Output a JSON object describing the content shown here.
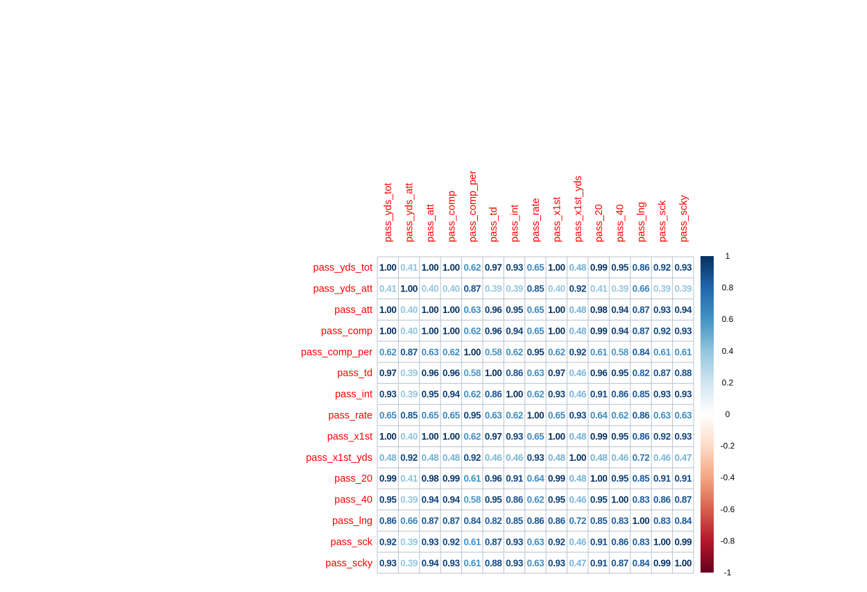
{
  "chart_data": {
    "type": "heatmap",
    "variables": [
      "pass_yds_tot",
      "pass_yds_att",
      "pass_att",
      "pass_comp",
      "pass_comp_per",
      "pass_td",
      "pass_int",
      "pass_rate",
      "pass_x1st",
      "pass_x1st_yds",
      "pass_20",
      "pass_40",
      "pass_lng",
      "pass_sck",
      "pass_scky"
    ],
    "matrix": [
      [
        "1.00",
        "0.41",
        "1.00",
        "1.00",
        "0.62",
        "0.97",
        "0.93",
        "0.65",
        "1.00",
        "0.48",
        "0.99",
        "0.95",
        "0.86",
        "0.92",
        "0.93"
      ],
      [
        "0.41",
        "1.00",
        "0.40",
        "0.40",
        "0.87",
        "0.39",
        "0.39",
        "0.85",
        "0.40",
        "0.92",
        "0.41",
        "0.39",
        "0.66",
        "0.39",
        "0.39"
      ],
      [
        "1.00",
        "0.40",
        "1.00",
        "1.00",
        "0.63",
        "0.96",
        "0.95",
        "0.65",
        "1.00",
        "0.48",
        "0.98",
        "0.94",
        "0.87",
        "0.93",
        "0.94"
      ],
      [
        "1.00",
        "0.40",
        "1.00",
        "1.00",
        "0.62",
        "0.96",
        "0.94",
        "0.65",
        "1.00",
        "0.48",
        "0.99",
        "0.94",
        "0.87",
        "0.92",
        "0.93"
      ],
      [
        "0.62",
        "0.87",
        "0.63",
        "0.62",
        "1.00",
        "0.58",
        "0.62",
        "0.95",
        "0.62",
        "0.92",
        "0.61",
        "0.58",
        "0.84",
        "0.61",
        "0.61"
      ],
      [
        "0.97",
        "0.39",
        "0.96",
        "0.96",
        "0.58",
        "1.00",
        "0.86",
        "0.63",
        "0.97",
        "0.46",
        "0.96",
        "0.95",
        "0.82",
        "0.87",
        "0.88"
      ],
      [
        "0.93",
        "0.39",
        "0.95",
        "0.94",
        "0.62",
        "0.86",
        "1.00",
        "0.62",
        "0.93",
        "0.46",
        "0.91",
        "0.86",
        "0.85",
        "0.93",
        "0.93"
      ],
      [
        "0.65",
        "0.85",
        "0.65",
        "0.65",
        "0.95",
        "0.63",
        "0.62",
        "1.00",
        "0.65",
        "0.93",
        "0.64",
        "0.62",
        "0.86",
        "0.63",
        "0.63"
      ],
      [
        "1.00",
        "0.40",
        "1.00",
        "1.00",
        "0.62",
        "0.97",
        "0.93",
        "0.65",
        "1.00",
        "0.48",
        "0.99",
        "0.95",
        "0.86",
        "0.92",
        "0.93"
      ],
      [
        "0.48",
        "0.92",
        "0.48",
        "0.48",
        "0.92",
        "0.46",
        "0.46",
        "0.93",
        "0.48",
        "1.00",
        "0.48",
        "0.46",
        "0.72",
        "0.46",
        "0.47"
      ],
      [
        "0.99",
        "0.41",
        "0.98",
        "0.99",
        "0.61",
        "0.96",
        "0.91",
        "0.64",
        "0.99",
        "0.48",
        "1.00",
        "0.95",
        "0.85",
        "0.91",
        "0.91"
      ],
      [
        "0.95",
        "0.39",
        "0.94",
        "0.94",
        "0.58",
        "0.95",
        "0.86",
        "0.62",
        "0.95",
        "0.46",
        "0.95",
        "1.00",
        "0.83",
        "0.86",
        "0.87"
      ],
      [
        "0.86",
        "0.66",
        "0.87",
        "0.87",
        "0.84",
        "0.82",
        "0.85",
        "0.86",
        "0.86",
        "0.72",
        "0.85",
        "0.83",
        "1.00",
        "0.83",
        "0.84"
      ],
      [
        "0.92",
        "0.39",
        "0.93",
        "0.92",
        "0.61",
        "0.87",
        "0.93",
        "0.63",
        "0.92",
        "0.46",
        "0.91",
        "0.86",
        "0.83",
        "1.00",
        "0.99"
      ],
      [
        "0.93",
        "0.39",
        "0.94",
        "0.93",
        "0.61",
        "0.88",
        "0.93",
        "0.63",
        "0.93",
        "0.47",
        "0.91",
        "0.87",
        "0.84",
        "0.99",
        "1.00"
      ]
    ],
    "legend": {
      "range": [
        -1,
        1
      ],
      "ticks": [
        "1",
        "0.8",
        "0.6",
        "0.4",
        "0.2",
        "0",
        "-0.2",
        "-0.4",
        "-0.6",
        "-0.8",
        "-1"
      ],
      "tick_values": [
        1,
        0.8,
        0.6,
        0.4,
        0.2,
        0,
        -0.2,
        -0.4,
        -0.6,
        -0.8,
        -1
      ],
      "placement": "right"
    },
    "colors": {
      "label": "#ff0000",
      "grid": "#b8c2cc",
      "palette": [
        "#67001f",
        "#b2182b",
        "#d6604d",
        "#f4a582",
        "#fddbc7",
        "#ffffff",
        "#d1e5f0",
        "#92c5de",
        "#4393c3",
        "#2166ac",
        "#053061"
      ]
    }
  }
}
